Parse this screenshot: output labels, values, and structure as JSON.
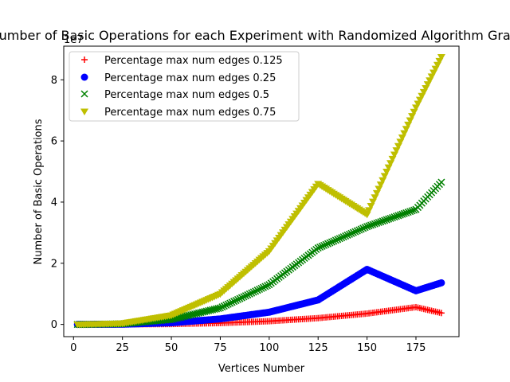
{
  "chart_data": {
    "type": "scatter",
    "title": "Number of Basic Operations for each Experiment with Randomized Algorithm Graphs",
    "xlabel": "Vertices Number",
    "ylabel": "Number of Basic Operations",
    "offset_text": "1e7",
    "xlim": [
      -5,
      197
    ],
    "ylim": [
      -0.4,
      9.1
    ],
    "xticks": [
      0,
      25,
      50,
      75,
      100,
      125,
      150,
      175
    ],
    "yticks": [
      0,
      2,
      4,
      6,
      8
    ],
    "y_unit_scale": "1e7",
    "legend_position": "upper-left",
    "grid": false,
    "x_range": [
      2,
      188
    ],
    "series": [
      {
        "name": "Percentage max num edges 0.125",
        "marker": "plus",
        "color": "#ff0000",
        "x": [
          2,
          25,
          50,
          75,
          100,
          125,
          150,
          175,
          188
        ],
        "y": [
          0,
          0.002,
          0.013,
          0.044,
          0.105,
          0.206,
          0.355,
          0.564,
          0.373
        ]
      },
      {
        "name": "Percentage max num edges 0.25",
        "marker": "circle",
        "color": "#0000ff",
        "x": [
          2,
          25,
          50,
          75,
          100,
          125,
          150,
          175,
          188
        ],
        "y": [
          0,
          0.006,
          0.052,
          0.18,
          0.4,
          0.8,
          1.8,
          1.1,
          1.36
        ]
      },
      {
        "name": "Percentage max num edges 0.5",
        "marker": "x",
        "color": "#008000",
        "x": [
          2,
          25,
          50,
          75,
          100,
          125,
          150,
          175,
          188
        ],
        "y": [
          0,
          0.019,
          0.16,
          0.54,
          1.3,
          2.5,
          3.2,
          3.76,
          4.65
        ]
      },
      {
        "name": "Percentage max num edges 0.75",
        "marker": "triangle-down",
        "color": "#bfbf00",
        "x": [
          2,
          25,
          50,
          75,
          100,
          125,
          150,
          175,
          188
        ],
        "y": [
          0,
          0.036,
          0.3,
          1.0,
          2.4,
          4.6,
          3.6,
          7.1,
          8.75
        ]
      }
    ]
  }
}
